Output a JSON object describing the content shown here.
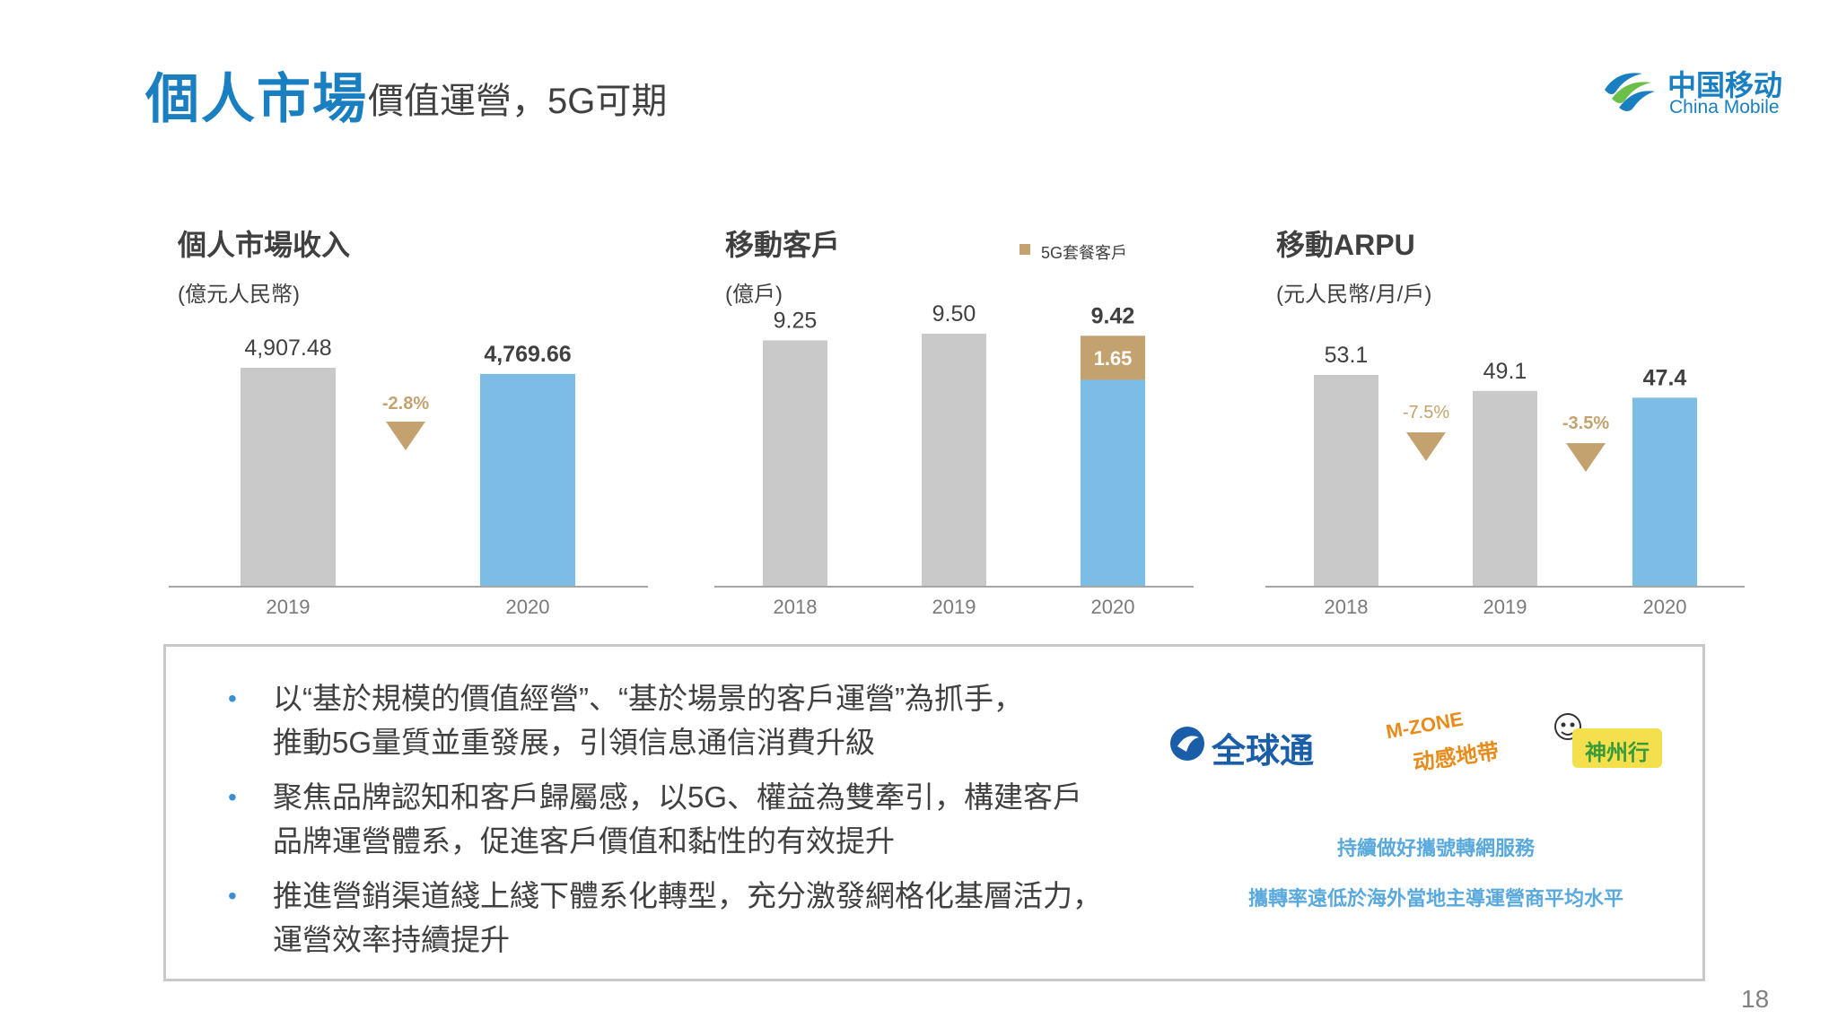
{
  "header": {
    "title": "個人市場",
    "subtitle": "價值運營，5G可期"
  },
  "logo": {
    "cn": "中国移动",
    "en": "China Mobile"
  },
  "colors": {
    "gray": "#c9c9c9",
    "blue": "#7dbce5",
    "gold": "#c4a26f",
    "change": "#c4a26f",
    "accent": "#1a7fc1"
  },
  "chart_data": [
    {
      "type": "bar",
      "title": "個人市場收入",
      "unit": "(億元人民幣)",
      "categories": [
        "2019",
        "2020"
      ],
      "values": [
        4907.48,
        4769.66
      ],
      "labels": [
        "4,907.48",
        "4,769.66"
      ],
      "changes": [
        {
          "between": [
            "2019",
            "2020"
          ],
          "label": "-2.8%"
        }
      ]
    },
    {
      "type": "bar",
      "title": "移動客戶",
      "unit": "(億戶)",
      "categories": [
        "2018",
        "2019",
        "2020"
      ],
      "values": [
        9.25,
        9.5,
        9.42
      ],
      "labels": [
        "9.25",
        "9.50",
        "9.42"
      ],
      "stack": {
        "category": "2020",
        "name": "5G套餐客戶",
        "value": 1.65,
        "label": "1.65"
      },
      "legend": [
        "5G套餐客戶"
      ]
    },
    {
      "type": "bar",
      "title": "移動ARPU",
      "unit": "(元人民幣/月/戶)",
      "categories": [
        "2018",
        "2019",
        "2020"
      ],
      "values": [
        53.1,
        49.1,
        47.4
      ],
      "labels": [
        "53.1",
        "49.1",
        "47.4"
      ],
      "changes": [
        {
          "between": [
            "2018",
            "2019"
          ],
          "label": "-7.5%"
        },
        {
          "between": [
            "2019",
            "2020"
          ],
          "label": "-3.5%"
        }
      ]
    }
  ],
  "bullets": [
    [
      "以“基於規模的價值經營”、“基於場景的客戶運營”為抓手，",
      "推動5G量質並重發展，引領信息通信消費升級"
    ],
    [
      "聚焦品牌認知和客戶歸屬感，以5G、權益為雙牽引，構建客戶",
      "品牌運營體系，促進客戶價值和黏性的有效提升"
    ],
    [
      "推進營銷渠道綫上綫下體系化轉型，充分激發網格化基層活力，",
      "運營效率持續提升"
    ]
  ],
  "brands": [
    "全球通",
    "M-ZONE",
    "动感地带",
    "神州行"
  ],
  "services": [
    "持續做好攜號轉網服務",
    "攜轉率遠低於海外當地主導運營商平均水平"
  ],
  "page_number": "18"
}
